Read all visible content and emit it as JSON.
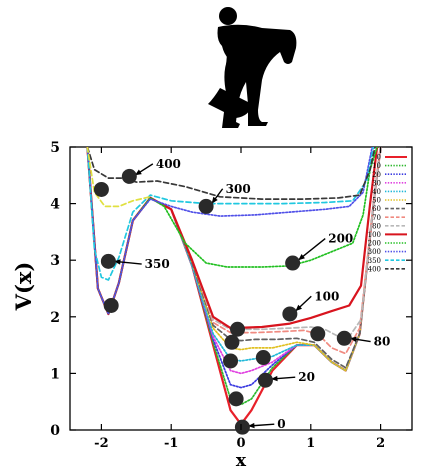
{
  "chart_data": {
    "type": "line",
    "title": "",
    "xlabel": "x",
    "ylabel": "V(x)",
    "xlim": [
      -2.45,
      2.45
    ],
    "ylim": [
      0,
      5
    ],
    "xticks": [
      -2,
      -1,
      0,
      1,
      2
    ],
    "yticks": [
      0,
      1,
      2,
      3,
      4,
      5
    ],
    "grid": false,
    "legend_position": "top-right",
    "series": [
      {
        "name": "0",
        "color": "#e8202a",
        "dash": "solid",
        "points": [
          [
            -2.2,
            5.0
          ],
          [
            -2.05,
            2.5
          ],
          [
            -1.9,
            2.05
          ],
          [
            -1.75,
            2.6
          ],
          [
            -1.55,
            3.7
          ],
          [
            -1.3,
            4.1
          ],
          [
            -1.0,
            3.9
          ],
          [
            -0.7,
            2.9
          ],
          [
            -0.4,
            1.5
          ],
          [
            -0.15,
            0.35
          ],
          [
            0.0,
            0.1
          ],
          [
            0.15,
            0.35
          ],
          [
            0.45,
            1.05
          ],
          [
            0.8,
            1.5
          ],
          [
            1.05,
            1.5
          ],
          [
            1.3,
            1.2
          ],
          [
            1.5,
            1.05
          ],
          [
            1.7,
            1.7
          ],
          [
            1.9,
            4.0
          ],
          [
            2.0,
            5.0
          ]
        ]
      },
      {
        "name": "10",
        "color": "#2db82d",
        "dash": "dotted",
        "points": [
          [
            -2.2,
            5.0
          ],
          [
            -2.05,
            2.5
          ],
          [
            -1.9,
            2.05
          ],
          [
            -1.75,
            2.6
          ],
          [
            -1.55,
            3.7
          ],
          [
            -1.3,
            4.1
          ],
          [
            -1.0,
            3.9
          ],
          [
            -0.7,
            2.9
          ],
          [
            -0.4,
            1.55
          ],
          [
            -0.15,
            0.55
          ],
          [
            0.0,
            0.45
          ],
          [
            0.15,
            0.55
          ],
          [
            0.45,
            1.1
          ],
          [
            0.8,
            1.5
          ],
          [
            1.05,
            1.5
          ],
          [
            1.3,
            1.2
          ],
          [
            1.5,
            1.05
          ],
          [
            1.7,
            1.7
          ],
          [
            1.9,
            4.0
          ],
          [
            2.0,
            5.0
          ]
        ]
      },
      {
        "name": "20",
        "color": "#3a3ae0",
        "dash": "dotted",
        "points": [
          [
            -2.2,
            5.0
          ],
          [
            -2.05,
            2.5
          ],
          [
            -1.9,
            2.05
          ],
          [
            -1.75,
            2.6
          ],
          [
            -1.55,
            3.7
          ],
          [
            -1.3,
            4.1
          ],
          [
            -1.0,
            3.9
          ],
          [
            -0.7,
            2.9
          ],
          [
            -0.4,
            1.6
          ],
          [
            -0.15,
            0.8
          ],
          [
            0.0,
            0.75
          ],
          [
            0.15,
            0.8
          ],
          [
            0.45,
            1.15
          ],
          [
            0.8,
            1.5
          ],
          [
            1.05,
            1.5
          ],
          [
            1.3,
            1.2
          ],
          [
            1.5,
            1.05
          ],
          [
            1.7,
            1.7
          ],
          [
            1.9,
            4.0
          ],
          [
            2.0,
            5.0
          ]
        ]
      },
      {
        "name": "30",
        "color": "#e040e0",
        "dash": "dotted",
        "points": [
          [
            -2.2,
            5.0
          ],
          [
            -2.05,
            2.5
          ],
          [
            -1.9,
            2.05
          ],
          [
            -1.75,
            2.6
          ],
          [
            -1.55,
            3.7
          ],
          [
            -1.3,
            4.1
          ],
          [
            -1.0,
            3.9
          ],
          [
            -0.7,
            2.9
          ],
          [
            -0.4,
            1.65
          ],
          [
            -0.15,
            1.05
          ],
          [
            0.0,
            1.0
          ],
          [
            0.15,
            1.05
          ],
          [
            0.45,
            1.2
          ],
          [
            0.8,
            1.5
          ],
          [
            1.05,
            1.5
          ],
          [
            1.3,
            1.2
          ],
          [
            1.5,
            1.05
          ],
          [
            1.7,
            1.7
          ],
          [
            1.9,
            4.0
          ],
          [
            2.0,
            5.0
          ]
        ]
      },
      {
        "name": "40",
        "color": "#20b8d8",
        "dash": "dotted",
        "points": [
          [
            -2.2,
            5.0
          ],
          [
            -2.05,
            2.5
          ],
          [
            -1.9,
            2.05
          ],
          [
            -1.75,
            2.6
          ],
          [
            -1.55,
            3.7
          ],
          [
            -1.3,
            4.1
          ],
          [
            -1.0,
            3.9
          ],
          [
            -0.7,
            2.9
          ],
          [
            -0.4,
            1.7
          ],
          [
            -0.15,
            1.25
          ],
          [
            0.0,
            1.22
          ],
          [
            0.15,
            1.25
          ],
          [
            0.45,
            1.3
          ],
          [
            0.8,
            1.5
          ],
          [
            1.05,
            1.5
          ],
          [
            1.3,
            1.2
          ],
          [
            1.5,
            1.05
          ],
          [
            1.7,
            1.7
          ],
          [
            1.9,
            4.0
          ],
          [
            2.0,
            5.0
          ]
        ]
      },
      {
        "name": "50",
        "color": "#e0c020",
        "dash": "dotted",
        "points": [
          [
            -2.2,
            5.0
          ],
          [
            -2.05,
            2.5
          ],
          [
            -1.9,
            2.05
          ],
          [
            -1.75,
            2.6
          ],
          [
            -1.55,
            3.7
          ],
          [
            -1.3,
            4.1
          ],
          [
            -1.0,
            3.9
          ],
          [
            -0.7,
            2.95
          ],
          [
            -0.4,
            1.8
          ],
          [
            -0.15,
            1.45
          ],
          [
            0.0,
            1.42
          ],
          [
            0.15,
            1.45
          ],
          [
            0.45,
            1.45
          ],
          [
            0.8,
            1.55
          ],
          [
            1.05,
            1.5
          ],
          [
            1.3,
            1.2
          ],
          [
            1.5,
            1.05
          ],
          [
            1.7,
            1.7
          ],
          [
            1.9,
            4.0
          ],
          [
            2.0,
            5.0
          ]
        ]
      },
      {
        "name": "60",
        "color": "#606060",
        "dash": "dashed",
        "points": [
          [
            -2.2,
            5.0
          ],
          [
            -2.05,
            2.5
          ],
          [
            -1.9,
            2.05
          ],
          [
            -1.75,
            2.6
          ],
          [
            -1.55,
            3.7
          ],
          [
            -1.3,
            4.1
          ],
          [
            -1.0,
            3.9
          ],
          [
            -0.7,
            2.95
          ],
          [
            -0.4,
            1.85
          ],
          [
            -0.15,
            1.6
          ],
          [
            0.0,
            1.58
          ],
          [
            0.2,
            1.6
          ],
          [
            0.5,
            1.6
          ],
          [
            0.8,
            1.62
          ],
          [
            1.05,
            1.55
          ],
          [
            1.3,
            1.25
          ],
          [
            1.5,
            1.1
          ],
          [
            1.7,
            1.7
          ],
          [
            1.9,
            4.0
          ],
          [
            2.0,
            5.0
          ]
        ]
      },
      {
        "name": "70",
        "color": "#f08a80",
        "dash": "dashed",
        "points": [
          [
            -2.2,
            5.0
          ],
          [
            -2.05,
            2.5
          ],
          [
            -1.9,
            2.05
          ],
          [
            -1.75,
            2.6
          ],
          [
            -1.55,
            3.7
          ],
          [
            -1.3,
            4.1
          ],
          [
            -1.0,
            3.9
          ],
          [
            -0.7,
            3.0
          ],
          [
            -0.4,
            1.9
          ],
          [
            -0.15,
            1.72
          ],
          [
            0.2,
            1.72
          ],
          [
            0.6,
            1.74
          ],
          [
            0.9,
            1.76
          ],
          [
            1.1,
            1.7
          ],
          [
            1.3,
            1.45
          ],
          [
            1.5,
            1.35
          ],
          [
            1.7,
            1.8
          ],
          [
            1.9,
            4.0
          ],
          [
            2.0,
            5.0
          ]
        ]
      },
      {
        "name": "80",
        "color": "#b8b8b8",
        "dash": "dashed",
        "points": [
          [
            -2.2,
            5.0
          ],
          [
            -2.05,
            2.5
          ],
          [
            -1.9,
            2.05
          ],
          [
            -1.75,
            2.6
          ],
          [
            -1.55,
            3.7
          ],
          [
            -1.3,
            4.1
          ],
          [
            -1.0,
            3.9
          ],
          [
            -0.7,
            3.0
          ],
          [
            -0.4,
            1.95
          ],
          [
            -0.15,
            1.78
          ],
          [
            0.3,
            1.78
          ],
          [
            0.7,
            1.8
          ],
          [
            1.0,
            1.82
          ],
          [
            1.2,
            1.78
          ],
          [
            1.4,
            1.65
          ],
          [
            1.55,
            1.65
          ],
          [
            1.72,
            1.95
          ],
          [
            1.9,
            4.0
          ],
          [
            2.0,
            5.0
          ]
        ]
      },
      {
        "name": "100",
        "color": "#d8141e",
        "dash": "solid",
        "points": [
          [
            -2.2,
            5.0
          ],
          [
            -2.05,
            2.5
          ],
          [
            -1.9,
            2.05
          ],
          [
            -1.75,
            2.6
          ],
          [
            -1.55,
            3.7
          ],
          [
            -1.3,
            4.1
          ],
          [
            -1.0,
            3.9
          ],
          [
            -0.7,
            3.0
          ],
          [
            -0.4,
            2.0
          ],
          [
            -0.15,
            1.8
          ],
          [
            0.3,
            1.82
          ],
          [
            0.7,
            1.88
          ],
          [
            1.0,
            1.98
          ],
          [
            1.3,
            2.1
          ],
          [
            1.55,
            2.2
          ],
          [
            1.72,
            2.55
          ],
          [
            1.85,
            4.0
          ],
          [
            1.95,
            5.0
          ]
        ]
      },
      {
        "name": "200",
        "color": "#22c022",
        "dash": "dotted",
        "points": [
          [
            -2.2,
            5.0
          ],
          [
            -2.05,
            2.5
          ],
          [
            -1.9,
            2.05
          ],
          [
            -1.75,
            2.6
          ],
          [
            -1.55,
            3.7
          ],
          [
            -1.3,
            4.1
          ],
          [
            -1.1,
            3.95
          ],
          [
            -0.8,
            3.3
          ],
          [
            -0.5,
            2.95
          ],
          [
            -0.2,
            2.88
          ],
          [
            0.3,
            2.88
          ],
          [
            0.7,
            2.9
          ],
          [
            1.0,
            3.0
          ],
          [
            1.3,
            3.15
          ],
          [
            1.6,
            3.3
          ],
          [
            1.75,
            3.8
          ],
          [
            1.85,
            4.6
          ],
          [
            1.95,
            5.0
          ]
        ]
      },
      {
        "name": "300",
        "color": "#5050e8",
        "dash": "dotted",
        "points": [
          [
            -2.2,
            5.0
          ],
          [
            -2.05,
            2.5
          ],
          [
            -1.9,
            2.05
          ],
          [
            -1.75,
            2.6
          ],
          [
            -1.55,
            3.7
          ],
          [
            -1.3,
            4.08
          ],
          [
            -1.0,
            3.95
          ],
          [
            -0.7,
            3.85
          ],
          [
            -0.3,
            3.78
          ],
          [
            0.2,
            3.8
          ],
          [
            0.7,
            3.85
          ],
          [
            1.2,
            3.9
          ],
          [
            1.55,
            3.95
          ],
          [
            1.75,
            4.2
          ],
          [
            1.88,
            5.0
          ]
        ]
      },
      {
        "name": "350",
        "color": "#20c8e0",
        "dash": "dashed",
        "points": [
          [
            -2.2,
            5.0
          ],
          [
            -2.1,
            3.2
          ],
          [
            -2.0,
            2.7
          ],
          [
            -1.9,
            2.65
          ],
          [
            -1.75,
            3.05
          ],
          [
            -1.55,
            3.85
          ],
          [
            -1.3,
            4.15
          ],
          [
            -1.0,
            4.05
          ],
          [
            -0.5,
            4.0
          ],
          [
            0.0,
            4.0
          ],
          [
            0.6,
            4.0
          ],
          [
            1.2,
            4.02
          ],
          [
            1.6,
            4.05
          ],
          [
            1.8,
            4.4
          ],
          [
            1.9,
            5.0
          ]
        ]
      },
      {
        "name": "400",
        "color": "#383838",
        "dash": "dashed",
        "points": [
          [
            -2.2,
            5.0
          ],
          [
            -2.1,
            4.6
          ],
          [
            -1.9,
            4.45
          ],
          [
            -1.7,
            4.45
          ],
          [
            -1.5,
            4.38
          ],
          [
            -1.2,
            4.4
          ],
          [
            -0.8,
            4.3
          ],
          [
            -0.3,
            4.12
          ],
          [
            0.3,
            4.08
          ],
          [
            0.9,
            4.08
          ],
          [
            1.4,
            4.1
          ],
          [
            1.7,
            4.15
          ],
          [
            1.85,
            4.6
          ],
          [
            1.92,
            5.0
          ]
        ]
      },
      {
        "name": "",
        "color": "#e0e040",
        "dash": "dashed",
        "points": [
          [
            -2.2,
            5.0
          ],
          [
            -2.1,
            4.2
          ],
          [
            -1.95,
            3.95
          ],
          [
            -1.75,
            3.95
          ],
          [
            -1.55,
            4.05
          ],
          [
            -1.3,
            4.12
          ]
        ]
      }
    ],
    "markers": [
      {
        "x": -2.0,
        "y": 4.25
      },
      {
        "x": -1.6,
        "y": 4.48
      },
      {
        "x": -0.5,
        "y": 3.95
      },
      {
        "x": -1.9,
        "y": 2.98
      },
      {
        "x": -1.86,
        "y": 2.2
      },
      {
        "x": 0.74,
        "y": 2.95
      },
      {
        "x": 0.7,
        "y": 2.05
      },
      {
        "x": -0.05,
        "y": 1.78
      },
      {
        "x": -0.13,
        "y": 1.55
      },
      {
        "x": 1.1,
        "y": 1.7
      },
      {
        "x": 1.48,
        "y": 1.62
      },
      {
        "x": -0.15,
        "y": 1.22
      },
      {
        "x": 0.32,
        "y": 1.28
      },
      {
        "x": 0.35,
        "y": 0.88
      },
      {
        "x": -0.07,
        "y": 0.55
      },
      {
        "x": 0.02,
        "y": 0.05
      }
    ],
    "annotations": [
      {
        "text": "400",
        "x": -1.22,
        "y": 4.72,
        "from_x": -1.52,
        "from_y": 4.5
      },
      {
        "text": "300",
        "x": -0.22,
        "y": 4.28,
        "from_x": -0.42,
        "from_y": 4.0
      },
      {
        "text": "350",
        "x": -1.38,
        "y": 2.95,
        "from_x": -1.82,
        "from_y": 2.98
      },
      {
        "text": "200",
        "x": 1.25,
        "y": 3.4,
        "from_x": 0.82,
        "from_y": 3.0
      },
      {
        "text": "100",
        "x": 1.05,
        "y": 2.38,
        "from_x": 0.78,
        "from_y": 2.1
      },
      {
        "text": "80",
        "x": 1.9,
        "y": 1.58,
        "from_x": 1.56,
        "from_y": 1.62
      },
      {
        "text": "20",
        "x": 0.82,
        "y": 0.95,
        "from_x": 0.43,
        "from_y": 0.9
      },
      {
        "text": "0",
        "x": 0.52,
        "y": 0.12,
        "from_x": 0.1,
        "from_y": 0.07
      }
    ]
  }
}
